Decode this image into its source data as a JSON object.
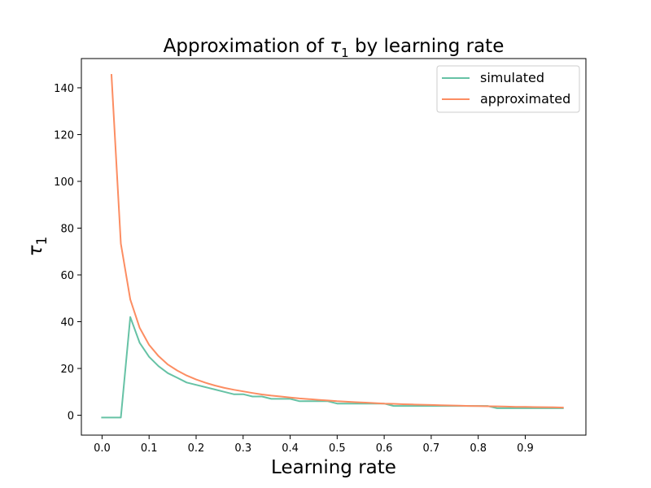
{
  "chart_data": {
    "type": "line",
    "title": "Approximation of τ₁ by learning rate",
    "title_parts": {
      "prefix": "Approximation of ",
      "symbol": "τ",
      "sub": "1",
      "suffix": " by learning rate"
    },
    "xlabel": "Learning rate",
    "ylabel": {
      "symbol": "τ",
      "sub": "1"
    },
    "xlim": [
      -0.044,
      1.029
    ],
    "ylim": [
      -8.5,
      152.5
    ],
    "xticks": [
      0.0,
      0.1,
      0.2,
      0.3,
      0.4,
      0.5,
      0.6,
      0.7,
      0.8,
      0.9
    ],
    "xtick_labels": [
      "0.0",
      "0.1",
      "0.2",
      "0.3",
      "0.4",
      "0.5",
      "0.6",
      "0.7",
      "0.8",
      "0.9"
    ],
    "yticks": [
      0,
      20,
      40,
      60,
      80,
      100,
      120,
      140
    ],
    "ytick_labels": [
      "0",
      "20",
      "40",
      "60",
      "80",
      "100",
      "120",
      "140"
    ],
    "grid": false,
    "legend_position": "top-right",
    "series": [
      {
        "name": "simulated",
        "color": "#66c2a5",
        "x": [
          0.0,
          0.02,
          0.04,
          0.06,
          0.08,
          0.1,
          0.12,
          0.14,
          0.16,
          0.18,
          0.2,
          0.22,
          0.24,
          0.26,
          0.28,
          0.3,
          0.32,
          0.34,
          0.36,
          0.38,
          0.4,
          0.42,
          0.44,
          0.46,
          0.48,
          0.5,
          0.52,
          0.54,
          0.56,
          0.58,
          0.6,
          0.62,
          0.64,
          0.66,
          0.68,
          0.7,
          0.72,
          0.74,
          0.76,
          0.78,
          0.8,
          0.82,
          0.84,
          0.86,
          0.88,
          0.9,
          0.92,
          0.94,
          0.96,
          0.98
        ],
        "y": [
          -1,
          -1,
          -1,
          42,
          31,
          25,
          21,
          18,
          16,
          14,
          13,
          12,
          11,
          10,
          9,
          9,
          8,
          8,
          7,
          7,
          7,
          6,
          6,
          6,
          6,
          5,
          5,
          5,
          5,
          5,
          5,
          4,
          4,
          4,
          4,
          4,
          4,
          4,
          4,
          4,
          4,
          4,
          3,
          3,
          3,
          3,
          3,
          3,
          3,
          3
        ]
      },
      {
        "name": "approximated",
        "color": "#fc8d62",
        "x": [
          0.02,
          0.04,
          0.06,
          0.08,
          0.1,
          0.12,
          0.14,
          0.16,
          0.18,
          0.2,
          0.22,
          0.24,
          0.26,
          0.28,
          0.3,
          0.32,
          0.34,
          0.36,
          0.38,
          0.4,
          0.42,
          0.44,
          0.46,
          0.48,
          0.5,
          0.52,
          0.54,
          0.56,
          0.58,
          0.6,
          0.62,
          0.64,
          0.66,
          0.68,
          0.7,
          0.72,
          0.74,
          0.76,
          0.78,
          0.8,
          0.82,
          0.84,
          0.86,
          0.88,
          0.9,
          0.92,
          0.94,
          0.96,
          0.98
        ],
        "y": [
          145.5,
          73.4,
          49.5,
          37.4,
          30.1,
          25.3,
          21.7,
          19.1,
          17.0,
          15.3,
          13.9,
          12.7,
          11.7,
          10.9,
          10.2,
          9.5,
          8.9,
          8.4,
          8.0,
          7.6,
          7.2,
          6.9,
          6.6,
          6.3,
          6.0,
          5.8,
          5.6,
          5.4,
          5.2,
          5.0,
          4.9,
          4.7,
          4.6,
          4.5,
          4.4,
          4.3,
          4.2,
          4.1,
          4.0,
          3.9,
          3.85,
          3.8,
          3.7,
          3.6,
          3.55,
          3.5,
          3.45,
          3.4,
          3.3
        ]
      }
    ]
  }
}
